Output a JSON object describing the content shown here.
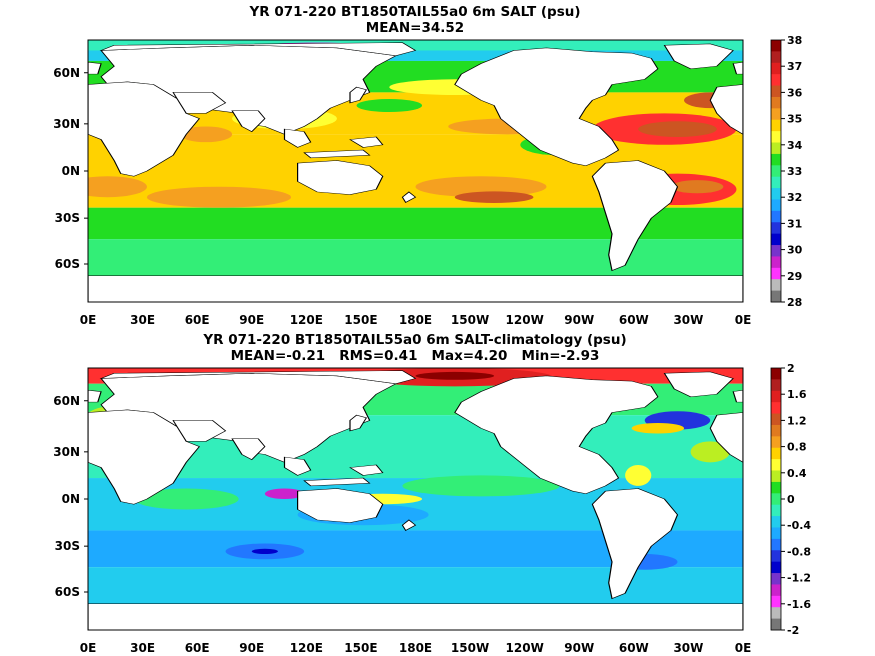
{
  "panels": [
    {
      "title_line1": "YR 071-220 BT1850TAIL55a0 6m SALT (psu)",
      "title_line2": "MEAN=34.52",
      "lat_labels": [
        "60N",
        "30N",
        "0N",
        "30S",
        "60S"
      ],
      "lon_labels": [
        "0E",
        "30E",
        "60E",
        "90E",
        "120E",
        "150E",
        "180E",
        "150W",
        "120W",
        "90W",
        "60W",
        "30W",
        "0E"
      ],
      "colorbar_labels": [
        "38",
        "37",
        "36",
        "35",
        "34",
        "33",
        "32",
        "31",
        "30",
        "29",
        "28"
      ],
      "colorbar_colors": [
        "#8b0000",
        "#b02020",
        "#e02020",
        "#ff3030",
        "#cc5522",
        "#e07a20",
        "#f5a020",
        "#ffd200",
        "#ffff33",
        "#bbee22",
        "#22dd22",
        "#33ee77",
        "#33eebb",
        "#22ccee",
        "#1eaaff",
        "#2277ff",
        "#2233dd",
        "#0000cc",
        "#7733cc",
        "#cc22cc",
        "#ff33ff",
        "#bbbbbb",
        "#777777"
      ]
    },
    {
      "title_line1": "YR 071-220 BT1850TAIL55a0 6m SALT-climatology (psu)",
      "title_line2": "MEAN=-0.21   RMS=0.41   Max=4.20   Min=-2.93",
      "lat_labels": [
        "60N",
        "30N",
        "0N",
        "30S",
        "60S"
      ],
      "lon_labels": [
        "0E",
        "30E",
        "60E",
        "90E",
        "120E",
        "150E",
        "180E",
        "150W",
        "120W",
        "90W",
        "60W",
        "30W",
        "0E"
      ],
      "colorbar_labels": [
        "2",
        "1.6",
        "1.2",
        "0.8",
        "0.4",
        "0",
        "-0.4",
        "-0.8",
        "-1.2",
        "-1.6",
        "-2"
      ],
      "colorbar_colors": [
        "#8b0000",
        "#b02020",
        "#e02020",
        "#ff3030",
        "#cc5522",
        "#e07a20",
        "#f5a020",
        "#ffd200",
        "#ffff33",
        "#bbee22",
        "#22dd22",
        "#33ee77",
        "#33eebb",
        "#22ccee",
        "#1eaaff",
        "#2277ff",
        "#2233dd",
        "#0000cc",
        "#7733cc",
        "#cc22cc",
        "#ff33ff",
        "#bbbbbb",
        "#777777"
      ]
    }
  ]
}
